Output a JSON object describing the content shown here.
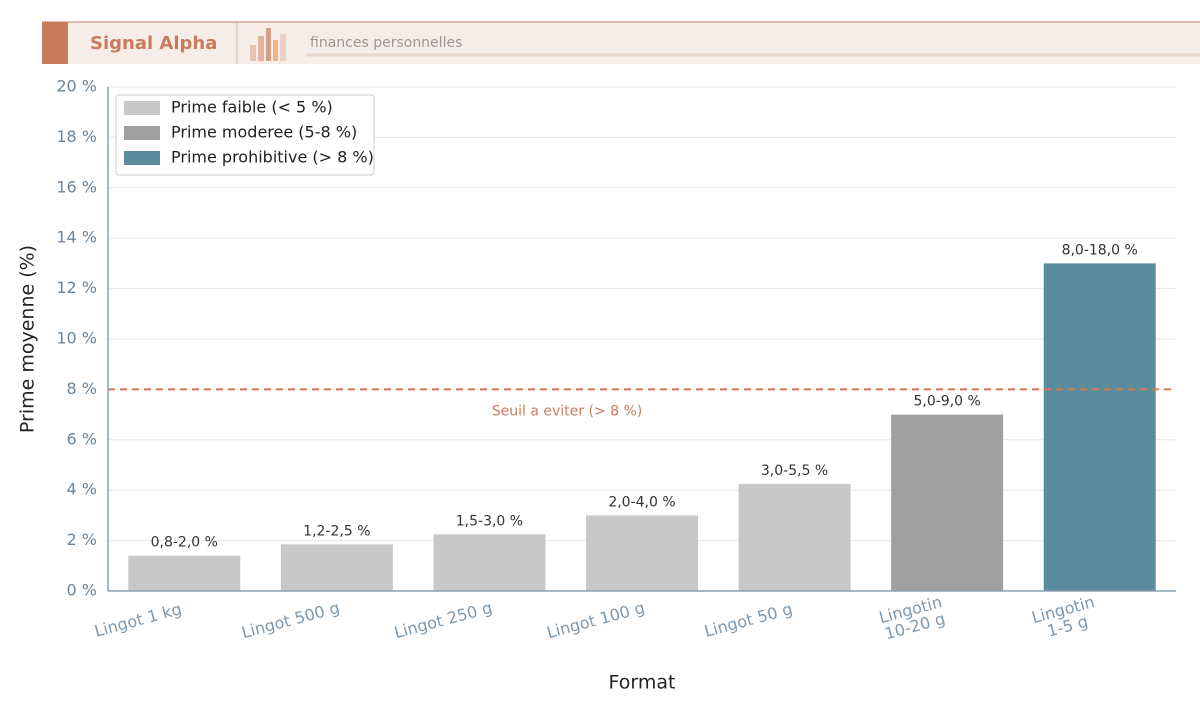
{
  "header": {
    "title": "Signal Alpha",
    "subtitle": "finances personnelles"
  },
  "chart_data": {
    "type": "bar",
    "xlabel": "Format",
    "ylabel": "Prime moyenne (%)",
    "categories": [
      "Lingot 1 kg",
      "Lingot 500 g",
      "Lingot 250 g",
      "Lingot 100 g",
      "Lingot 50 g",
      [
        "Lingotin",
        "10-20 g"
      ],
      [
        "Lingotin",
        "1-5 g"
      ]
    ],
    "values": [
      1.4,
      1.85,
      2.25,
      3.0,
      4.25,
      7.0,
      13.0
    ],
    "value_labels": [
      "0,8-2,0 %",
      "1,2-2,5 %",
      "1,5-3,0 %",
      "2,0-4,0 %",
      "3,0-5,5 %",
      "5,0-9,0 %",
      "8,0-18,0 %"
    ],
    "colors": [
      "#c8c8c8",
      "#c8c8c8",
      "#c8c8c8",
      "#c8c8c8",
      "#c8c8c8",
      "#a0a0a0",
      "#5b8c9e"
    ],
    "legend": [
      {
        "name": "Prime faible (< 5 %)",
        "color": "#c8c8c8"
      },
      {
        "name": "Prime moderee (5-8 %)",
        "color": "#a0a0a0"
      },
      {
        "name": "Prime prohibitive (> 8 %)",
        "color": "#5b8c9e"
      }
    ],
    "legend_position": "upper left",
    "reference_line": {
      "value": 8,
      "label": "Seuil a eviter (> 8 %)",
      "color": "#c97c5d"
    },
    "ylim": [
      0,
      20
    ],
    "yticks": [
      {
        "value": 0,
        "label": "0 %"
      },
      {
        "value": 2,
        "label": "2 %"
      },
      {
        "value": 4,
        "label": "4 %"
      },
      {
        "value": 6,
        "label": "6 %"
      },
      {
        "value": 8,
        "label": "8 %"
      },
      {
        "value": 10,
        "label": "10 %"
      },
      {
        "value": 12,
        "label": "12 %"
      },
      {
        "value": 14,
        "label": "14 %"
      },
      {
        "value": 16,
        "label": "16 %"
      },
      {
        "value": 18,
        "label": "18 %"
      },
      {
        "value": 20,
        "label": "20 %"
      }
    ],
    "grid": true
  }
}
